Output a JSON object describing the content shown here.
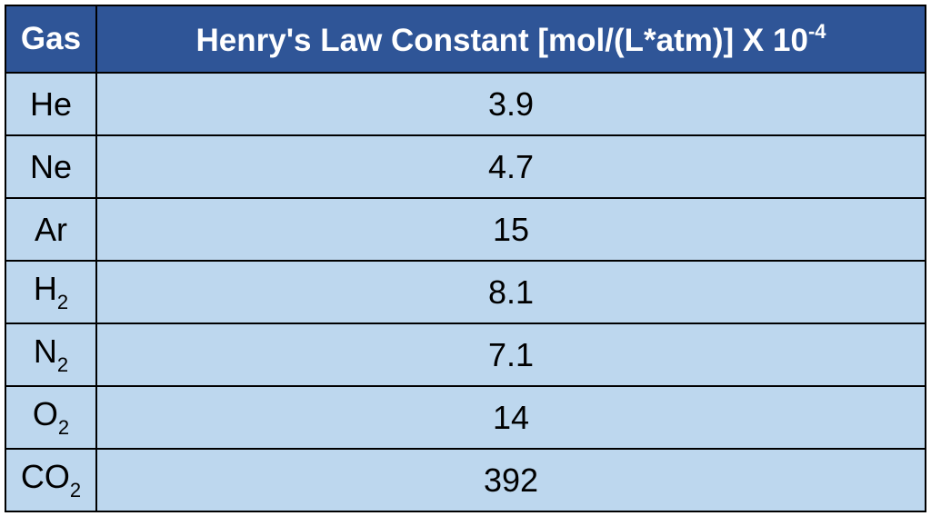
{
  "table": {
    "header": {
      "gas": "Gas",
      "constant": "Henry's Law Constant [mol/(L*atm)] X 10",
      "constant_sup": "-4"
    },
    "rows": [
      {
        "gas": "He",
        "value": 3.9
      },
      {
        "gas": "Ne",
        "value": 4.7
      },
      {
        "gas": "Ar",
        "value": 15
      },
      {
        "gas": "H",
        "gas_sub": "2",
        "value": 8.1
      },
      {
        "gas": "N",
        "gas_sub": "2",
        "value": 7.1
      },
      {
        "gas": "O",
        "gas_sub": "2",
        "value": 14
      },
      {
        "gas": "CO",
        "gas_sub": "2",
        "value": 392
      }
    ]
  }
}
